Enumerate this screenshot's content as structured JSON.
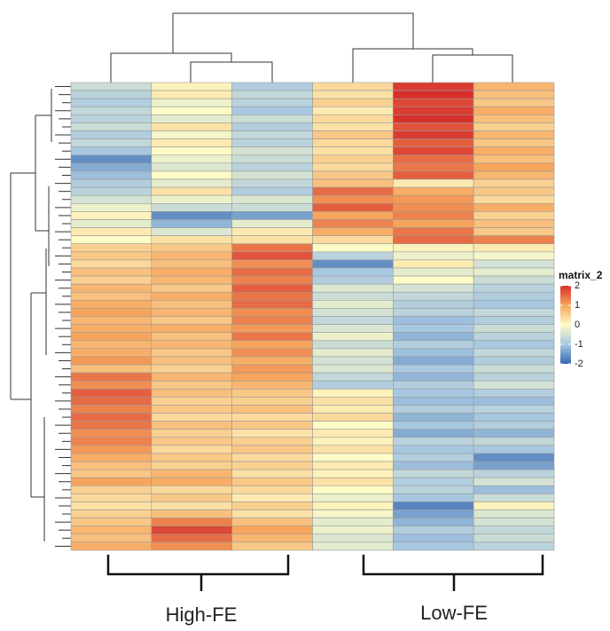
{
  "chart_data": {
    "type": "heatmap",
    "legend_title": "matrix_2",
    "clim": [
      -2,
      2
    ],
    "colors": [
      "#3567b0",
      "#a8c8e1",
      "#fdfbc6",
      "#f7a55c",
      "#d7302b"
    ],
    "legend_ticks": [
      2,
      1,
      0,
      -1,
      -2
    ],
    "column_groups": [
      "High-FE",
      "Low-FE"
    ],
    "matrix": [
      [
        -0.6,
        0.1,
        -0.9,
        0.4,
        1.9,
        0.8
      ],
      [
        -0.8,
        0.2,
        -0.7,
        0.3,
        2.0,
        0.7
      ],
      [
        -0.9,
        -0.2,
        -0.8,
        0.5,
        1.8,
        0.6
      ],
      [
        -0.7,
        0.0,
        -1.0,
        0.2,
        1.9,
        0.9
      ],
      [
        -0.8,
        -0.3,
        -0.6,
        0.4,
        2.0,
        0.7
      ],
      [
        -0.6,
        0.3,
        -0.9,
        0.3,
        1.7,
        0.5
      ],
      [
        -0.9,
        -0.1,
        -0.7,
        0.6,
        1.9,
        0.8
      ],
      [
        -0.7,
        0.2,
        -0.8,
        0.4,
        1.6,
        0.6
      ],
      [
        -1.0,
        0.0,
        -0.5,
        0.3,
        1.8,
        0.9
      ],
      [
        -1.6,
        -0.2,
        -0.6,
        0.5,
        1.5,
        0.7
      ],
      [
        -1.3,
        -0.4,
        -0.8,
        0.4,
        1.4,
        1.0
      ],
      [
        -1.1,
        0.0,
        -0.5,
        0.6,
        1.6,
        0.8
      ],
      [
        -0.9,
        -0.3,
        -0.7,
        0.7,
        0.2,
        0.5
      ],
      [
        -0.8,
        0.3,
        -0.9,
        1.5,
        0.9,
        0.6
      ],
      [
        -0.5,
        -0.2,
        -0.4,
        1.2,
        1.1,
        0.4
      ],
      [
        -0.2,
        -0.6,
        -0.6,
        1.6,
        1.2,
        0.9
      ],
      [
        0.1,
        -1.6,
        -1.4,
        1.0,
        1.3,
        0.5
      ],
      [
        -0.3,
        -1.2,
        -0.3,
        1.3,
        1.0,
        0.7
      ],
      [
        0.2,
        -0.4,
        0.2,
        0.9,
        1.4,
        0.6
      ],
      [
        0.0,
        0.3,
        0.3,
        0.4,
        1.5,
        1.3
      ],
      [
        0.5,
        0.6,
        1.4,
        0.0,
        0.1,
        0.2
      ],
      [
        0.6,
        0.8,
        1.7,
        -0.8,
        -0.2,
        -0.1
      ],
      [
        0.4,
        0.7,
        1.2,
        -1.6,
        0.2,
        -0.5
      ],
      [
        0.7,
        0.9,
        1.5,
        -1.0,
        -0.3,
        -0.3
      ],
      [
        0.5,
        0.8,
        1.3,
        -0.9,
        0.0,
        -0.6
      ],
      [
        0.8,
        0.6,
        1.6,
        -0.4,
        -0.5,
        -0.8
      ],
      [
        0.7,
        0.9,
        1.4,
        -0.6,
        -0.7,
        -0.9
      ],
      [
        0.9,
        0.7,
        1.5,
        -0.3,
        -0.9,
        -1.0
      ],
      [
        1.0,
        0.8,
        1.2,
        -0.5,
        -0.8,
        -0.7
      ],
      [
        0.8,
        0.6,
        1.3,
        -0.7,
        -1.1,
        -0.9
      ],
      [
        0.9,
        0.9,
        1.1,
        -0.4,
        -1.0,
        -0.6
      ],
      [
        1.0,
        0.7,
        1.4,
        -0.2,
        -1.2,
        -0.8
      ],
      [
        0.8,
        0.8,
        1.0,
        -0.6,
        -0.9,
        -1.0
      ],
      [
        0.9,
        0.6,
        1.2,
        -0.3,
        -1.1,
        -0.7
      ],
      [
        1.1,
        0.7,
        0.9,
        -0.5,
        -1.3,
        -0.9
      ],
      [
        0.7,
        0.5,
        1.1,
        -0.4,
        -1.0,
        -0.6
      ],
      [
        1.4,
        0.8,
        1.0,
        -0.7,
        -1.2,
        -0.8
      ],
      [
        1.2,
        0.6,
        0.8,
        -0.9,
        -0.9,
        -0.5
      ],
      [
        1.6,
        0.7,
        0.6,
        0.1,
        -1.0,
        -0.9
      ],
      [
        1.5,
        0.5,
        0.5,
        0.3,
        -1.1,
        -1.1
      ],
      [
        1.3,
        0.6,
        0.7,
        0.2,
        -0.9,
        -0.8
      ],
      [
        1.5,
        0.4,
        0.4,
        0.4,
        -1.2,
        -1.0
      ],
      [
        1.4,
        0.7,
        0.6,
        0.0,
        -1.0,
        -0.9
      ],
      [
        1.2,
        0.5,
        0.3,
        0.2,
        -1.3,
        -1.2
      ],
      [
        1.3,
        0.6,
        0.5,
        0.1,
        -0.8,
        -0.7
      ],
      [
        1.1,
        0.4,
        0.6,
        0.3,
        -1.0,
        -1.0
      ],
      [
        0.9,
        0.6,
        0.4,
        0.0,
        -0.9,
        -1.6
      ],
      [
        0.7,
        0.5,
        0.5,
        0.2,
        -1.1,
        -1.4
      ],
      [
        0.6,
        0.8,
        0.3,
        0.1,
        -0.7,
        -0.8
      ],
      [
        1.0,
        0.9,
        0.6,
        0.3,
        -0.9,
        -0.5
      ],
      [
        0.5,
        0.4,
        0.4,
        0.0,
        -0.8,
        -1.1
      ],
      [
        0.4,
        0.6,
        0.2,
        -0.2,
        -1.0,
        -0.6
      ],
      [
        0.3,
        0.3,
        0.5,
        0.1,
        -1.7,
        0.1
      ],
      [
        0.5,
        0.7,
        0.3,
        -0.1,
        -1.4,
        -0.4
      ],
      [
        0.6,
        1.3,
        0.7,
        -0.3,
        -1.2,
        -0.5
      ],
      [
        0.8,
        1.8,
        1.0,
        -0.2,
        -0.9,
        -0.7
      ],
      [
        0.7,
        1.5,
        0.8,
        -0.4,
        -1.1,
        -0.6
      ],
      [
        0.9,
        1.2,
        0.6,
        -0.3,
        -1.0,
        -0.8
      ]
    ]
  }
}
